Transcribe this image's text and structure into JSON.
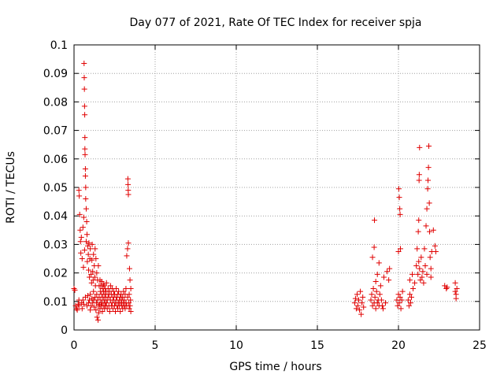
{
  "chart_data": {
    "type": "scatter",
    "title": "Day 077 of 2021, Rate Of TEC Index for receiver spja",
    "xlabel": "GPS time / hours",
    "ylabel": "ROTI / TECUs",
    "xlim": [
      0,
      25
    ],
    "ylim": [
      0,
      0.1
    ],
    "x_ticks": [
      "0",
      "5",
      "10",
      "15",
      "20",
      "25"
    ],
    "y_ticks": [
      "0",
      "0.01",
      "0.02",
      "0.03",
      "0.04",
      "0.05",
      "0.06",
      "0.07",
      "0.08",
      "0.09",
      "0.1"
    ],
    "grid": true,
    "marker": "+",
    "color": "#e00000",
    "series": [
      {
        "name": "ROTI",
        "points": [
          [
            0.0,
            0.0145
          ],
          [
            0.05,
            0.014
          ],
          [
            0.1,
            0.0085
          ],
          [
            0.15,
            0.0075
          ],
          [
            0.2,
            0.007
          ],
          [
            0.25,
            0.009
          ],
          [
            0.3,
            0.0105
          ],
          [
            0.3,
            0.0085
          ],
          [
            0.3,
            0.049
          ],
          [
            0.32,
            0.047
          ],
          [
            0.35,
            0.0405
          ],
          [
            0.38,
            0.035
          ],
          [
            0.4,
            0.031
          ],
          [
            0.42,
            0.027
          ],
          [
            0.45,
            0.0325
          ],
          [
            0.45,
            0.0095
          ],
          [
            0.5,
            0.025
          ],
          [
            0.5,
            0.0075
          ],
          [
            0.55,
            0.036
          ],
          [
            0.55,
            0.0105
          ],
          [
            0.58,
            0.022
          ],
          [
            0.6,
            0.0395
          ],
          [
            0.6,
            0.009
          ],
          [
            0.62,
            0.0935
          ],
          [
            0.63,
            0.0885
          ],
          [
            0.64,
            0.0845
          ],
          [
            0.65,
            0.0785
          ],
          [
            0.65,
            0.028
          ],
          [
            0.66,
            0.0755
          ],
          [
            0.67,
            0.0675
          ],
          [
            0.67,
            0.0635
          ],
          [
            0.68,
            0.0615
          ],
          [
            0.7,
            0.0565
          ],
          [
            0.7,
            0.054
          ],
          [
            0.7,
            0.0115
          ],
          [
            0.72,
            0.05
          ],
          [
            0.72,
            0.046
          ],
          [
            0.75,
            0.0425
          ],
          [
            0.75,
            0.031
          ],
          [
            0.78,
            0.038
          ],
          [
            0.8,
            0.0335
          ],
          [
            0.8,
            0.0085
          ],
          [
            0.82,
            0.024
          ],
          [
            0.85,
            0.0295
          ],
          [
            0.85,
            0.012
          ],
          [
            0.88,
            0.0265
          ],
          [
            0.9,
            0.021
          ],
          [
            0.9,
            0.0095
          ],
          [
            0.92,
            0.0305
          ],
          [
            0.95,
            0.0185
          ],
          [
            0.95,
            0.0105
          ],
          [
            0.98,
            0.025
          ],
          [
            1.0,
            0.0285
          ],
          [
            1.0,
            0.0125
          ],
          [
            1.0,
            0.007
          ],
          [
            1.05,
            0.0195
          ],
          [
            1.05,
            0.0085
          ],
          [
            1.08,
            0.0165
          ],
          [
            1.1,
            0.0245
          ],
          [
            1.1,
            0.011
          ],
          [
            1.12,
            0.03
          ],
          [
            1.15,
            0.0205
          ],
          [
            1.15,
            0.0095
          ],
          [
            1.18,
            0.0175
          ],
          [
            1.2,
            0.0265
          ],
          [
            1.2,
            0.0135
          ],
          [
            1.22,
            0.0105
          ],
          [
            1.25,
            0.0225
          ],
          [
            1.25,
            0.008
          ],
          [
            1.28,
            0.0185
          ],
          [
            1.3,
            0.0285
          ],
          [
            1.3,
            0.0115
          ],
          [
            1.32,
            0.0155
          ],
          [
            1.35,
            0.025
          ],
          [
            1.35,
            0.007
          ],
          [
            1.38,
            0.0095
          ],
          [
            1.4,
            0.02
          ],
          [
            1.4,
            0.0125
          ],
          [
            1.42,
            0.0045
          ],
          [
            1.45,
            0.0175
          ],
          [
            1.45,
            0.0105
          ],
          [
            1.48,
            0.0035
          ],
          [
            1.5,
            0.0225
          ],
          [
            1.5,
            0.0085
          ],
          [
            1.52,
            0.006
          ],
          [
            1.55,
            0.0155
          ],
          [
            1.55,
            0.0115
          ],
          [
            1.58,
            0.009
          ],
          [
            1.6,
            0.0175
          ],
          [
            1.6,
            0.0075
          ],
          [
            1.62,
            0.0135
          ],
          [
            1.65,
            0.0105
          ],
          [
            1.65,
            0.0155
          ],
          [
            1.68,
            0.0085
          ],
          [
            1.7,
            0.0125
          ],
          [
            1.7,
            0.017
          ],
          [
            1.72,
            0.0095
          ],
          [
            1.75,
            0.0145
          ],
          [
            1.75,
            0.0065
          ],
          [
            1.78,
            0.0115
          ],
          [
            1.8,
            0.016
          ],
          [
            1.8,
            0.0085
          ],
          [
            1.82,
            0.0135
          ],
          [
            1.85,
            0.0105
          ],
          [
            1.85,
            0.0155
          ],
          [
            1.88,
            0.0075
          ],
          [
            1.9,
            0.0125
          ],
          [
            1.9,
            0.0095
          ],
          [
            1.92,
            0.0145
          ],
          [
            1.95,
            0.0085
          ],
          [
            1.95,
            0.0115
          ],
          [
            1.98,
            0.0135
          ],
          [
            2.0,
            0.0095
          ],
          [
            2.0,
            0.0165
          ],
          [
            2.05,
            0.0105
          ],
          [
            2.05,
            0.0075
          ],
          [
            2.1,
            0.0125
          ],
          [
            2.1,
            0.0145
          ],
          [
            2.15,
            0.0085
          ],
          [
            2.15,
            0.0115
          ],
          [
            2.2,
            0.0135
          ],
          [
            2.2,
            0.0065
          ],
          [
            2.25,
            0.0105
          ],
          [
            2.25,
            0.0155
          ],
          [
            2.3,
            0.0085
          ],
          [
            2.3,
            0.0125
          ],
          [
            2.35,
            0.0095
          ],
          [
            2.35,
            0.0145
          ],
          [
            2.4,
            0.0115
          ],
          [
            2.4,
            0.0075
          ],
          [
            2.45,
            0.0105
          ],
          [
            2.45,
            0.0135
          ],
          [
            2.5,
            0.0085
          ],
          [
            2.5,
            0.0125
          ],
          [
            2.55,
            0.0095
          ],
          [
            2.55,
            0.0065
          ],
          [
            2.6,
            0.0115
          ],
          [
            2.6,
            0.0145
          ],
          [
            2.65,
            0.0085
          ],
          [
            2.65,
            0.0105
          ],
          [
            2.7,
            0.0125
          ],
          [
            2.7,
            0.0075
          ],
          [
            2.75,
            0.0095
          ],
          [
            2.75,
            0.0135
          ],
          [
            2.8,
            0.0105
          ],
          [
            2.8,
            0.0085
          ],
          [
            2.85,
            0.0115
          ],
          [
            2.85,
            0.0065
          ],
          [
            2.9,
            0.0095
          ],
          [
            2.9,
            0.0125
          ],
          [
            2.95,
            0.0085
          ],
          [
            2.95,
            0.0105
          ],
          [
            3.0,
            0.0115
          ],
          [
            3.0,
            0.0075
          ],
          [
            3.05,
            0.0095
          ],
          [
            3.05,
            0.0135
          ],
          [
            3.1,
            0.0085
          ],
          [
            3.1,
            0.0105
          ],
          [
            3.15,
            0.0125
          ],
          [
            3.15,
            0.0075
          ],
          [
            3.2,
            0.0095
          ],
          [
            3.2,
            0.0145
          ],
          [
            3.25,
            0.0085
          ],
          [
            3.25,
            0.026
          ],
          [
            3.3,
            0.0285
          ],
          [
            3.3,
            0.0115
          ],
          [
            3.32,
            0.053
          ],
          [
            3.33,
            0.051
          ],
          [
            3.34,
            0.049
          ],
          [
            3.35,
            0.0475
          ],
          [
            3.35,
            0.0305
          ],
          [
            3.38,
            0.0095
          ],
          [
            3.4,
            0.0075
          ],
          [
            3.4,
            0.0125
          ],
          [
            3.42,
            0.0215
          ],
          [
            3.45,
            0.0085
          ],
          [
            3.45,
            0.0175
          ],
          [
            3.48,
            0.0105
          ],
          [
            3.5,
            0.0065
          ],
          [
            3.5,
            0.0145
          ],
          [
            17.3,
            0.0095
          ],
          [
            17.35,
            0.011
          ],
          [
            17.4,
            0.0075
          ],
          [
            17.45,
            0.0125
          ],
          [
            17.5,
            0.0085
          ],
          [
            17.55,
            0.0105
          ],
          [
            17.6,
            0.007
          ],
          [
            17.65,
            0.0135
          ],
          [
            17.7,
            0.0055
          ],
          [
            17.75,
            0.0095
          ],
          [
            17.8,
            0.0115
          ],
          [
            17.85,
            0.008
          ],
          [
            18.3,
            0.0105
          ],
          [
            18.35,
            0.0125
          ],
          [
            18.4,
            0.0085
          ],
          [
            18.4,
            0.0255
          ],
          [
            18.45,
            0.0145
          ],
          [
            18.5,
            0.0095
          ],
          [
            18.5,
            0.029
          ],
          [
            18.52,
            0.0385
          ],
          [
            18.55,
            0.0115
          ],
          [
            18.6,
            0.0075
          ],
          [
            18.6,
            0.017
          ],
          [
            18.65,
            0.0135
          ],
          [
            18.7,
            0.0095
          ],
          [
            18.7,
            0.0195
          ],
          [
            18.75,
            0.0105
          ],
          [
            18.8,
            0.0235
          ],
          [
            18.8,
            0.0085
          ],
          [
            18.85,
            0.0125
          ],
          [
            18.9,
            0.0155
          ],
          [
            18.95,
            0.0105
          ],
          [
            19.0,
            0.0085
          ],
          [
            19.05,
            0.0075
          ],
          [
            19.1,
            0.0185
          ],
          [
            19.2,
            0.0095
          ],
          [
            19.3,
            0.0205
          ],
          [
            19.4,
            0.0175
          ],
          [
            19.45,
            0.0215
          ],
          [
            19.9,
            0.0105
          ],
          [
            19.95,
            0.0085
          ],
          [
            20.0,
            0.0125
          ],
          [
            20.0,
            0.0275
          ],
          [
            20.02,
            0.0495
          ],
          [
            20.05,
            0.0465
          ],
          [
            20.05,
            0.0095
          ],
          [
            20.08,
            0.0425
          ],
          [
            20.1,
            0.0405
          ],
          [
            20.1,
            0.0115
          ],
          [
            20.12,
            0.0285
          ],
          [
            20.15,
            0.0075
          ],
          [
            20.2,
            0.0105
          ],
          [
            20.25,
            0.0135
          ],
          [
            20.6,
            0.0105
          ],
          [
            20.65,
            0.0085
          ],
          [
            20.7,
            0.0125
          ],
          [
            20.7,
            0.0175
          ],
          [
            20.75,
            0.0095
          ],
          [
            20.8,
            0.0115
          ],
          [
            20.85,
            0.0195
          ],
          [
            20.9,
            0.0145
          ],
          [
            21.0,
            0.0165
          ],
          [
            21.1,
            0.0225
          ],
          [
            21.15,
            0.0285
          ],
          [
            21.2,
            0.0195
          ],
          [
            21.22,
            0.0345
          ],
          [
            21.25,
            0.0385
          ],
          [
            21.25,
            0.024
          ],
          [
            21.27,
            0.0525
          ],
          [
            21.28,
            0.0545
          ],
          [
            21.3,
            0.064
          ],
          [
            21.3,
            0.0215
          ],
          [
            21.35,
            0.0175
          ],
          [
            21.4,
            0.0255
          ],
          [
            21.45,
            0.0185
          ],
          [
            21.5,
            0.0205
          ],
          [
            21.55,
            0.0165
          ],
          [
            21.6,
            0.0285
          ],
          [
            21.65,
            0.0225
          ],
          [
            21.7,
            0.0365
          ],
          [
            21.75,
            0.0425
          ],
          [
            21.75,
            0.0195
          ],
          [
            21.8,
            0.0495
          ],
          [
            21.82,
            0.0525
          ],
          [
            21.85,
            0.057
          ],
          [
            21.87,
            0.0645
          ],
          [
            21.9,
            0.0445
          ],
          [
            21.92,
            0.0345
          ],
          [
            21.95,
            0.0255
          ],
          [
            22.0,
            0.0215
          ],
          [
            22.0,
            0.0185
          ],
          [
            22.05,
            0.0275
          ],
          [
            22.15,
            0.035
          ],
          [
            22.25,
            0.0295
          ],
          [
            22.3,
            0.0275
          ],
          [
            22.85,
            0.0155
          ],
          [
            22.95,
            0.0145
          ],
          [
            23.0,
            0.015
          ],
          [
            23.5,
            0.0165
          ],
          [
            23.5,
            0.0135
          ],
          [
            23.55,
            0.0125
          ],
          [
            23.55,
            0.011
          ],
          [
            23.6,
            0.0145
          ]
        ]
      }
    ]
  }
}
